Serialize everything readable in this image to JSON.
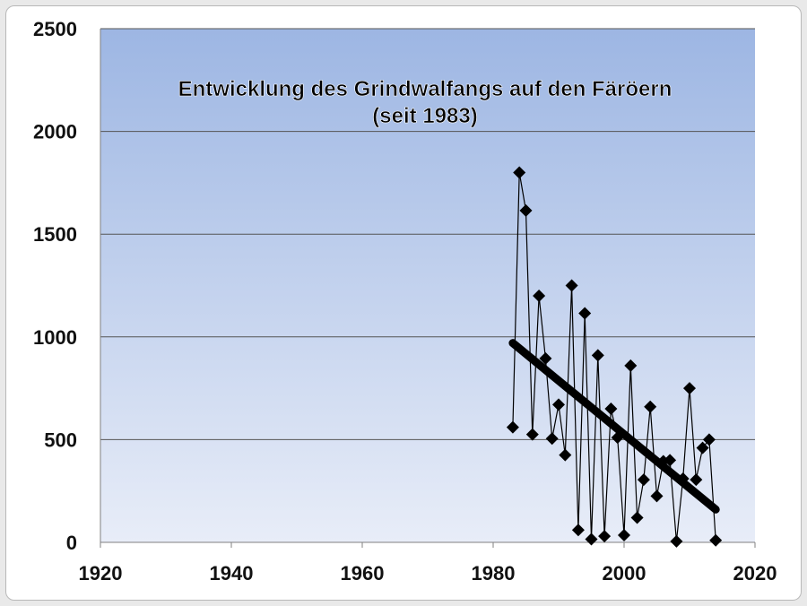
{
  "chart_data": {
    "type": "scatter",
    "title": "Entwicklung des Grindwalfangs auf den Färöern",
    "subtitle": "(seit 1983)",
    "xlabel": "",
    "ylabel": "",
    "xlim": [
      1920,
      2020
    ],
    "ylim": [
      0,
      2500
    ],
    "xticks": [
      "1920",
      "1940",
      "1960",
      "1980",
      "2000",
      "2020"
    ],
    "yticks": [
      "0",
      "500",
      "1000",
      "1500",
      "2000",
      "2500"
    ],
    "grid": true,
    "legend": "none",
    "series": [
      {
        "x": [
          1983,
          1984,
          1985,
          1986,
          1987,
          1988,
          1989,
          1990,
          1991,
          1992,
          1993,
          1994,
          1995,
          1996,
          1997,
          1998,
          1999,
          2000,
          2001,
          2002,
          2003,
          2004,
          2005,
          2006,
          2007,
          2008,
          2009,
          2010,
          2011,
          2012,
          2013,
          2014
        ],
        "values": [
          560,
          1800,
          1615,
          525,
          1200,
          895,
          505,
          670,
          425,
          1250,
          60,
          1115,
          15,
          910,
          30,
          650,
          510,
          35,
          860,
          120,
          305,
          660,
          225,
          395,
          400,
          5,
          310,
          750,
          305,
          460,
          500,
          10
        ],
        "marker": "diamond",
        "color": "#000000"
      }
    ],
    "trendline": {
      "x": [
        1983,
        2014
      ],
      "values": [
        970,
        160
      ],
      "color": "#000000"
    },
    "colors": {
      "plot_top": "#9db6e3",
      "plot_bottom": "#e8edf8",
      "grid": "#555555"
    }
  }
}
